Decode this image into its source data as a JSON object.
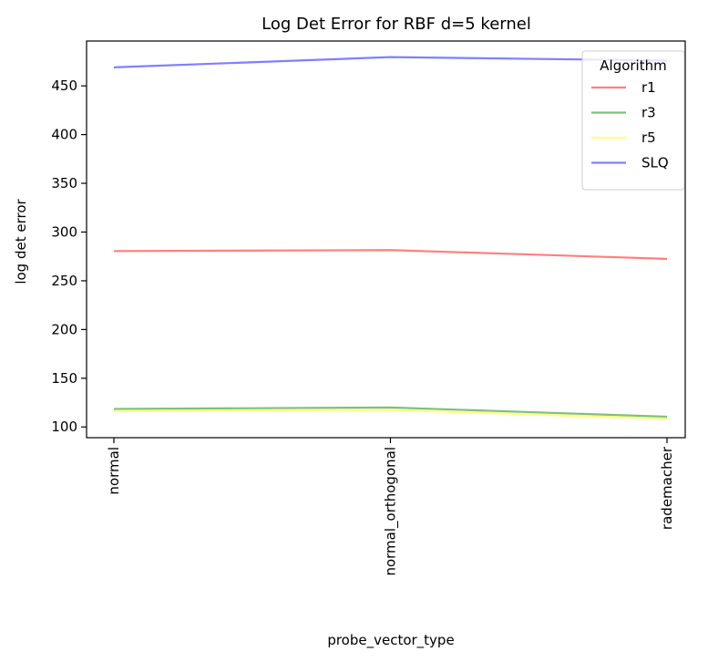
{
  "chart_data": {
    "type": "line",
    "title": "Log Det Error for RBF d=5 kernel",
    "xlabel": "probe_vector_type",
    "ylabel": "log det error",
    "categories": [
      "normal",
      "normal_orthogonal",
      "rademacher"
    ],
    "ylim": [
      89,
      496
    ],
    "yticks": [
      100,
      150,
      200,
      250,
      300,
      350,
      400,
      450
    ],
    "grid": false,
    "legend": {
      "title": "Algorithm",
      "position": "top-right"
    },
    "series": [
      {
        "name": "r1",
        "color": "#ff0000",
        "values": [
          280.5,
          281.5,
          272.5
        ]
      },
      {
        "name": "r3",
        "color": "#008000",
        "values": [
          118.5,
          120.0,
          110.5
        ]
      },
      {
        "name": "r5",
        "color": "#ffff00",
        "values": [
          116.5,
          117.5,
          108.5
        ]
      },
      {
        "name": "SLQ",
        "color": "#0000ff",
        "values": [
          469.0,
          479.5,
          476.0
        ]
      }
    ],
    "line_opacity": 0.5
  }
}
